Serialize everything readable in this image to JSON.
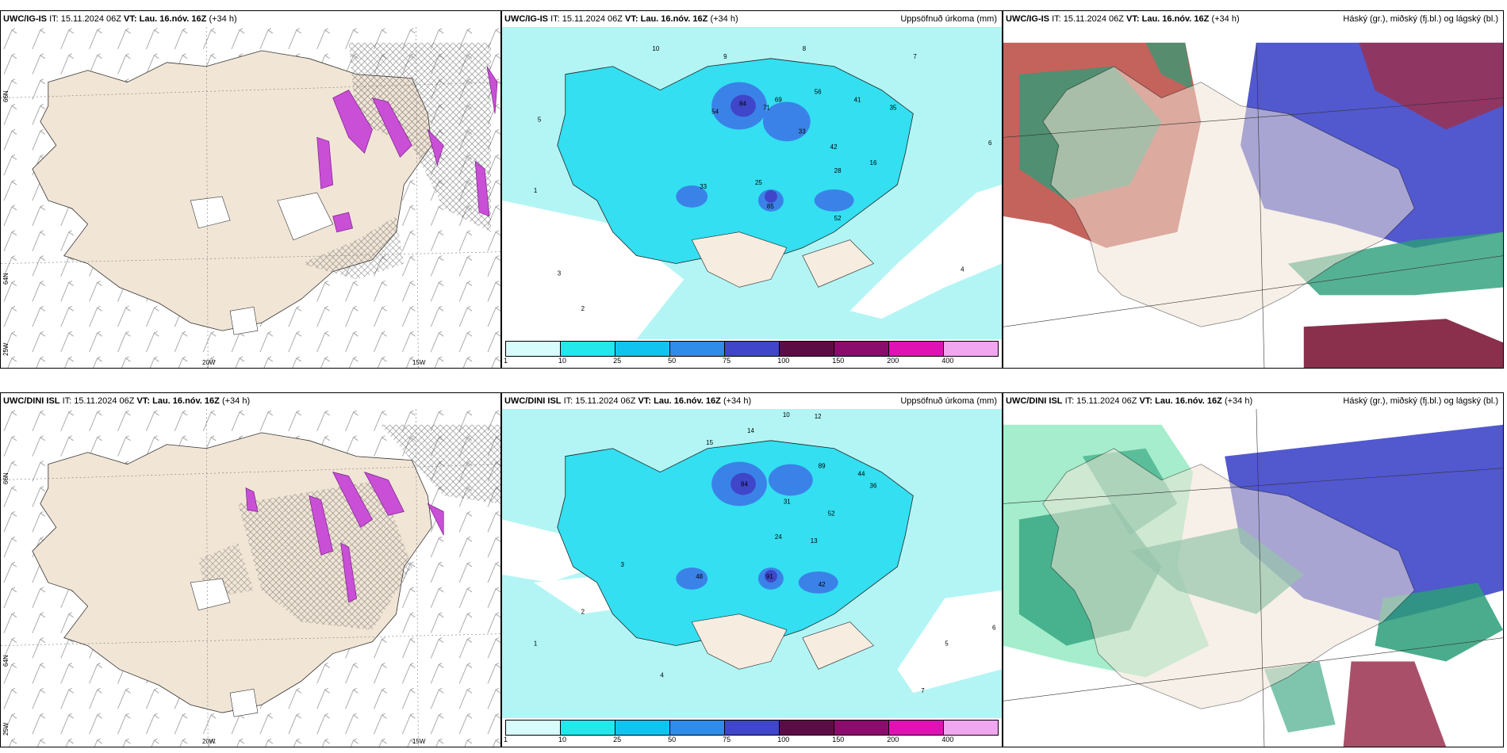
{
  "colors": {
    "land": "#f1e5d6",
    "sea_precip_light": "#b3f5f5",
    "precip_mid": "#33dff0",
    "precip_heavy": "#3b82e8",
    "precip_vheavy": "#3f46c9",
    "snow_magenta": "#c94fd6",
    "high_cloud": "#9b3050",
    "mid_cloud": "#3f46c9",
    "low_cloud": "#2a9e78"
  },
  "rows": [
    {
      "model": "UWC/IG-IS",
      "panels": [
        {
          "it": "IT: 15.11.2024 06Z",
          "vt_label": "VT:",
          "vt": "Lau. 16.nóv. 16Z",
          "lead": "(+34 h)",
          "right": ""
        },
        {
          "it": "IT: 15.11.2024 06Z",
          "vt_label": "VT:",
          "vt": "Lau. 16.nóv. 16Z",
          "lead": "(+34 h)",
          "right": "Uppsöfnuð úrkoma (mm)"
        },
        {
          "it": "IT: 15.11.2024 06Z",
          "vt_label": "VT:",
          "vt": "Lau. 16.nóv. 16Z",
          "lead": "(+34 h)",
          "right": "Háský (gr.), miðský (fj.bl.) og lágský (bl.)"
        }
      ]
    },
    {
      "model": "UWC/DINI ISL",
      "panels": [
        {
          "it": "IT: 15.11.2024 06Z",
          "vt_label": "VT:",
          "vt": "Lau. 16.nóv. 16Z",
          "lead": "(+34 h)",
          "right": ""
        },
        {
          "it": "IT: 15.11.2024 06Z",
          "vt_label": "VT:",
          "vt": "Lau. 16.nóv. 16Z",
          "lead": "(+34 h)",
          "right": "Uppsöfnuð úrkoma (mm)"
        },
        {
          "it": "IT: 15.11.2024 06Z",
          "vt_label": "VT:",
          "vt": "Lau. 16.nóv. 16Z",
          "lead": "(+34 h)",
          "right": "Háský (gr.), miðský (fj.bl.) og lágský (bl.)"
        }
      ]
    }
  ],
  "axes": {
    "lon_20w": "20W",
    "lon_15w": "15W",
    "lat_66n": "66N",
    "lat_64n": "64N",
    "lon_25w": "25W"
  },
  "colorbar": {
    "ticks": [
      "1",
      "10",
      "25",
      "50",
      "75",
      "100",
      "150",
      "200",
      "400"
    ],
    "colors": [
      "#d8fbfb",
      "#22e8ec",
      "#11c4ef",
      "#2f8ce8",
      "#3f46c9",
      "#5c0c45",
      "#8a0c6c",
      "#e012b4",
      "#f1a6f0"
    ]
  },
  "precip_labels_top": [
    "10",
    "9",
    "8",
    "7",
    "84",
    "54",
    "71",
    "69",
    "56",
    "41",
    "35",
    "33",
    "42",
    "25",
    "28",
    "16",
    "85",
    "33",
    "52",
    "5",
    "3",
    "2",
    "1",
    "4",
    "6"
  ],
  "precip_labels_bottom": [
    "14",
    "12",
    "10",
    "15",
    "84",
    "89",
    "44",
    "36",
    "52",
    "31",
    "24",
    "13",
    "91",
    "48",
    "42",
    "3",
    "2",
    "4",
    "5",
    "1",
    "7",
    "6"
  ]
}
